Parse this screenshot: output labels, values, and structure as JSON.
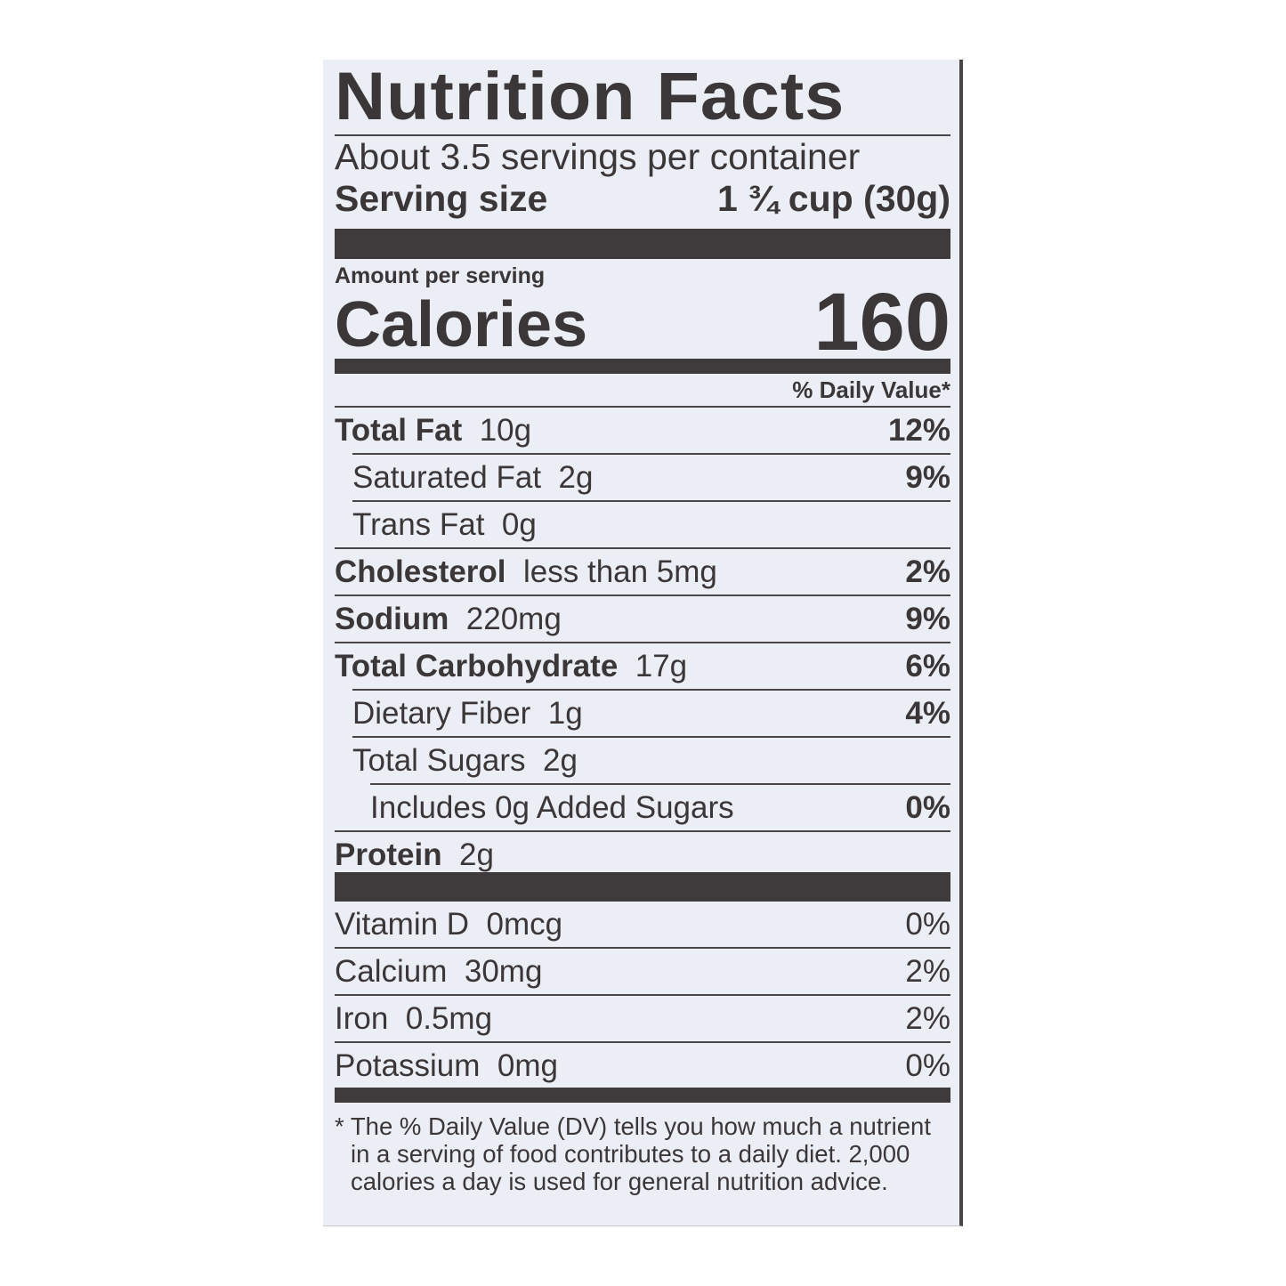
{
  "title": "Nutrition Facts",
  "servings_per_container": "About 3.5 servings per container",
  "serving_size": {
    "label": "Serving size",
    "value": "1 ¾ cup (30g)"
  },
  "amount_per_serving": "Amount per serving",
  "calories": {
    "label": "Calories",
    "value": "160"
  },
  "daily_value_header": "% Daily Value*",
  "nutrients": [
    {
      "name": "Total Fat",
      "amount": "10g",
      "dv": "12%"
    },
    {
      "name": "Saturated Fat",
      "amount": "2g",
      "dv": "9%"
    },
    {
      "name": "Trans Fat",
      "amount": "0g",
      "dv": ""
    },
    {
      "name": "Cholesterol",
      "amount": "less than 5mg",
      "dv": "2%"
    },
    {
      "name": "Sodium",
      "amount": "220mg",
      "dv": "9%"
    },
    {
      "name": "Total Carbohydrate",
      "amount": "17g",
      "dv": "6%"
    },
    {
      "name": "Dietary Fiber",
      "amount": "1g",
      "dv": "4%"
    },
    {
      "name": "Total Sugars",
      "amount": "2g",
      "dv": ""
    },
    {
      "name": "Includes 0g Added Sugars",
      "amount": "",
      "dv": "0%"
    },
    {
      "name": "Protein",
      "amount": "2g",
      "dv": ""
    }
  ],
  "vitamins": [
    {
      "name": "Vitamin D",
      "amount": "0mcg",
      "dv": "0%"
    },
    {
      "name": "Calcium",
      "amount": "30mg",
      "dv": "2%"
    },
    {
      "name": "Iron",
      "amount": "0.5mg",
      "dv": "2%"
    },
    {
      "name": "Potassium",
      "amount": "0mg",
      "dv": "0%"
    }
  ],
  "footnote": "* The % Daily Value (DV) tells you how much a nutrient in a serving of food contributes to a daily diet. 2,000 calories a day is used for general nutrition advice.",
  "colors": {
    "ink": "#3b3637",
    "panel": "#eceef6"
  }
}
